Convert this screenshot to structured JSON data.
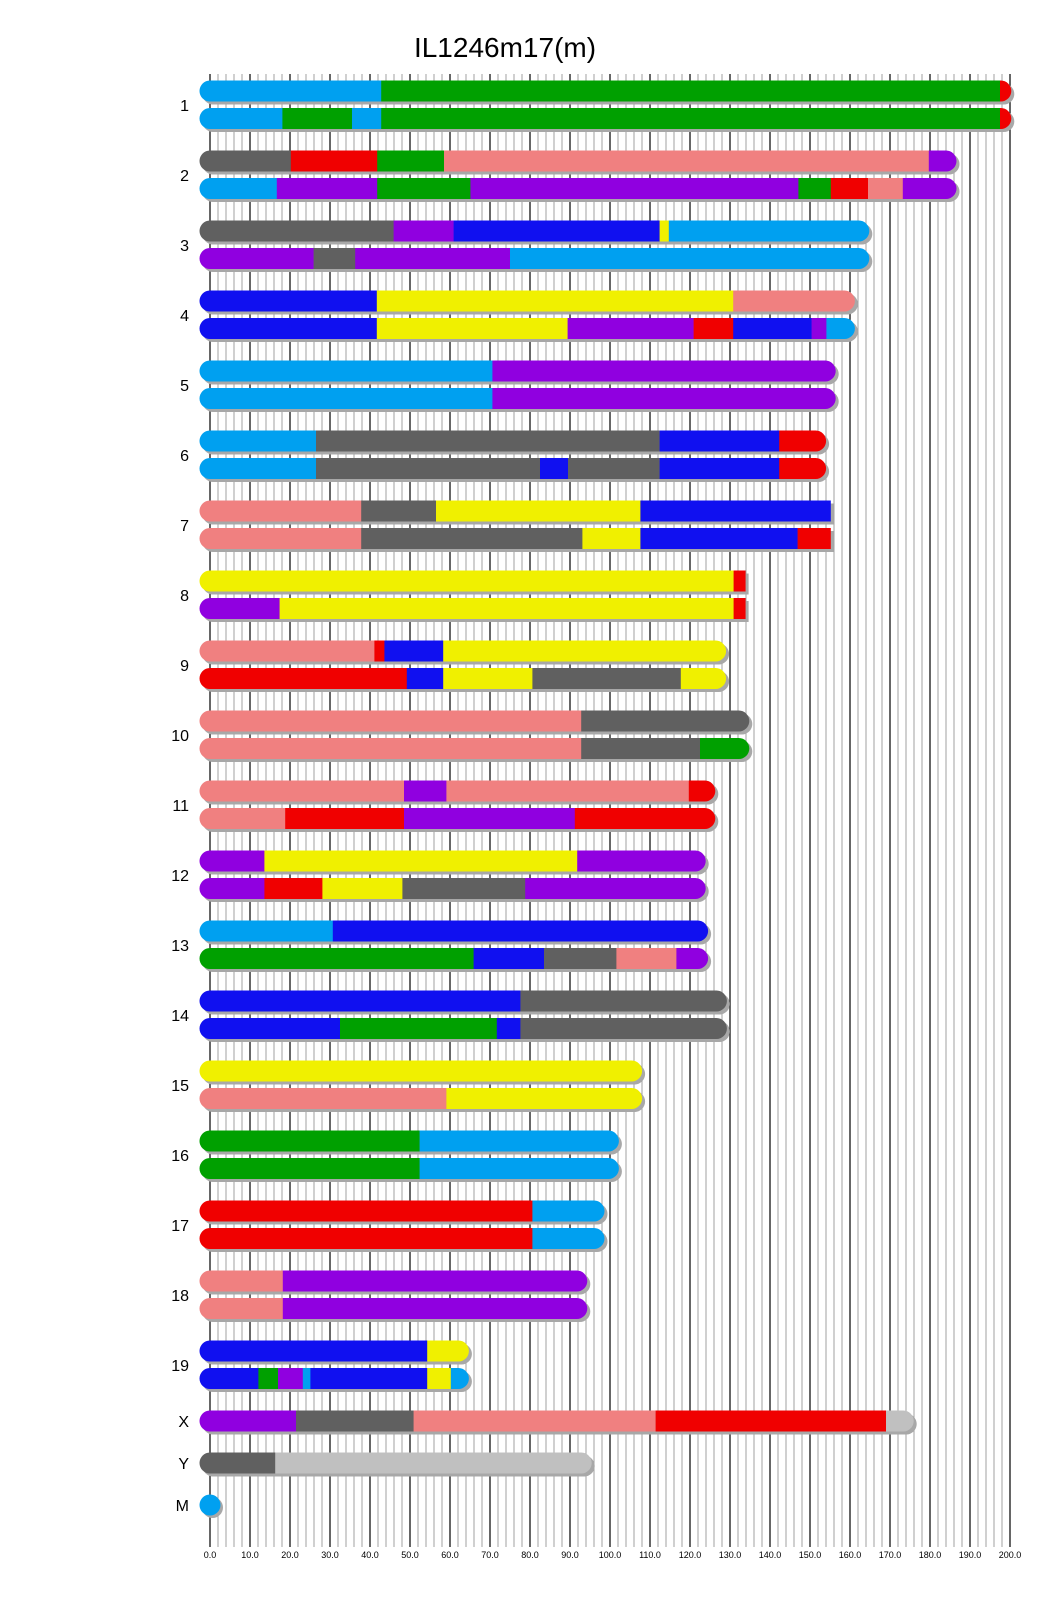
{
  "chart_data": {
    "type": "bar",
    "subtype": "chromosome-haplotype-painting",
    "title": "IL1246m17(m)",
    "xlabel": "",
    "ylabel": "",
    "xlim": [
      0,
      200
    ],
    "x_ticks": [
      "0.0",
      "10.0",
      "20.0",
      "30.0",
      "40.0",
      "50.0",
      "60.0",
      "70.0",
      "80.0",
      "90.0",
      "100.0",
      "110.0",
      "120.0",
      "130.0",
      "140.0",
      "150.0",
      "160.0",
      "170.0",
      "180.0",
      "190.0",
      "200.0"
    ],
    "grid": {
      "major_step": 10,
      "minor_step": 2
    },
    "colors": {
      "lightblue": "#00A0F0",
      "green": "#00A000",
      "red": "#F00000",
      "gray": "#606060",
      "salmon": "#F08080",
      "purple": "#9000E0",
      "blue": "#1010F0",
      "yellow": "#F0F000",
      "lightgray": "#C0C0C0",
      "shadow": "#A8A8A8",
      "grid_major": "#000000",
      "grid_minor": "#A0A0A0"
    },
    "chromosomes": [
      {
        "label": "1",
        "length": 197.7,
        "haplotypes": [
          [
            [
              42.8,
              "lightblue"
            ],
            [
              197.5,
              "green"
            ],
            [
              197.7,
              "red"
            ]
          ],
          [
            [
              18.1,
              "lightblue"
            ],
            [
              35.5,
              "green"
            ],
            [
              42.8,
              "lightblue"
            ],
            [
              197.5,
              "green"
            ],
            [
              197.7,
              "red"
            ]
          ]
        ]
      },
      {
        "label": "2",
        "length": 184.0,
        "haplotypes": [
          [
            [
              20.2,
              "gray"
            ],
            [
              41.8,
              "red"
            ],
            [
              58.5,
              "green"
            ],
            [
              179.7,
              "salmon"
            ],
            [
              184.0,
              "purple"
            ]
          ],
          [
            [
              16.7,
              "lightblue"
            ],
            [
              41.8,
              "purple"
            ],
            [
              65.1,
              "green"
            ],
            [
              147.1,
              "purple"
            ],
            [
              155.2,
              "green"
            ],
            [
              164.5,
              "red"
            ],
            [
              173.2,
              "salmon"
            ],
            [
              184.0,
              "purple"
            ]
          ]
        ]
      },
      {
        "label": "3",
        "length": 162.2,
        "haplotypes": [
          [
            [
              45.9,
              "gray"
            ],
            [
              60.9,
              "purple"
            ],
            [
              112.4,
              "blue"
            ],
            [
              114.7,
              "yellow"
            ],
            [
              162.2,
              "lightblue"
            ]
          ],
          [
            [
              25.9,
              "purple"
            ],
            [
              36.3,
              "gray"
            ],
            [
              75.0,
              "purple"
            ],
            [
              162.2,
              "lightblue"
            ]
          ]
        ]
      },
      {
        "label": "4",
        "length": 158.6,
        "haplotypes": [
          [
            [
              41.7,
              "blue"
            ],
            [
              130.8,
              "yellow"
            ],
            [
              158.6,
              "salmon"
            ]
          ],
          [
            [
              41.7,
              "blue"
            ],
            [
              89.4,
              "yellow"
            ],
            [
              120.9,
              "purple"
            ],
            [
              130.8,
              "red"
            ],
            [
              150.4,
              "blue"
            ],
            [
              154.1,
              "purple"
            ],
            [
              158.6,
              "lightblue"
            ]
          ]
        ]
      },
      {
        "label": "5",
        "length": 153.8,
        "haplotypes": [
          [
            [
              70.6,
              "lightblue"
            ],
            [
              153.8,
              "purple"
            ]
          ],
          [
            [
              70.6,
              "lightblue"
            ],
            [
              153.8,
              "purple"
            ]
          ]
        ]
      },
      {
        "label": "6",
        "length": 151.4,
        "haplotypes": [
          [
            [
              26.5,
              "lightblue"
            ],
            [
              112.4,
              "gray"
            ],
            [
              142.3,
              "blue"
            ],
            [
              151.4,
              "red"
            ]
          ],
          [
            [
              26.5,
              "lightblue"
            ],
            [
              82.5,
              "gray"
            ],
            [
              89.5,
              "blue"
            ],
            [
              112.4,
              "gray"
            ],
            [
              142.3,
              "blue"
            ],
            [
              151.4,
              "red"
            ]
          ]
        ]
      },
      {
        "label": "7",
        "length": 155.2,
        "square_end": true,
        "haplotypes": [
          [
            [
              37.8,
              "salmon"
            ],
            [
              56.5,
              "gray"
            ],
            [
              107.6,
              "yellow"
            ],
            [
              155.2,
              "blue"
            ]
          ],
          [
            [
              37.8,
              "salmon"
            ],
            [
              93.1,
              "gray"
            ],
            [
              107.6,
              "yellow"
            ],
            [
              146.9,
              "blue"
            ],
            [
              155.2,
              "red"
            ]
          ]
        ]
      },
      {
        "label": "8",
        "length": 133.9,
        "square_end": true,
        "haplotypes": [
          [
            [
              130.9,
              "yellow"
            ],
            [
              133.9,
              "red"
            ]
          ],
          [
            [
              17.4,
              "purple"
            ],
            [
              130.9,
              "yellow"
            ],
            [
              133.9,
              "red"
            ]
          ]
        ]
      },
      {
        "label": "9",
        "length": 126.4,
        "haplotypes": [
          [
            [
              41.1,
              "salmon"
            ],
            [
              43.6,
              "red"
            ],
            [
              58.3,
              "blue"
            ],
            [
              126.4,
              "yellow"
            ]
          ],
          [
            [
              49.2,
              "red"
            ],
            [
              58.3,
              "blue"
            ],
            [
              80.6,
              "yellow"
            ],
            [
              117.7,
              "gray"
            ],
            [
              126.4,
              "yellow"
            ]
          ]
        ]
      },
      {
        "label": "10",
        "length": 132.2,
        "haplotypes": [
          [
            [
              92.8,
              "salmon"
            ],
            [
              132.2,
              "gray"
            ]
          ],
          [
            [
              92.8,
              "salmon"
            ],
            [
              122.5,
              "gray"
            ],
            [
              132.2,
              "green"
            ]
          ]
        ]
      },
      {
        "label": "11",
        "length": 123.7,
        "haplotypes": [
          [
            [
              48.5,
              "salmon"
            ],
            [
              59.1,
              "purple"
            ],
            [
              119.7,
              "salmon"
            ],
            [
              123.7,
              "red"
            ]
          ],
          [
            [
              18.8,
              "salmon"
            ],
            [
              48.5,
              "red"
            ],
            [
              91.2,
              "purple"
            ],
            [
              123.7,
              "red"
            ]
          ]
        ]
      },
      {
        "label": "12",
        "length": 121.3,
        "haplotypes": [
          [
            [
              13.6,
              "purple"
            ],
            [
              91.8,
              "yellow"
            ],
            [
              121.3,
              "purple"
            ]
          ],
          [
            [
              13.6,
              "purple"
            ],
            [
              28.1,
              "red"
            ],
            [
              48.1,
              "yellow"
            ],
            [
              78.8,
              "gray"
            ],
            [
              121.3,
              "purple"
            ]
          ]
        ]
      },
      {
        "label": "13",
        "length": 121.9,
        "haplotypes": [
          [
            [
              30.7,
              "lightblue"
            ],
            [
              121.9,
              "blue"
            ]
          ],
          [
            [
              65.9,
              "green"
            ],
            [
              83.5,
              "blue"
            ],
            [
              101.6,
              "gray"
            ],
            [
              116.6,
              "salmon"
            ],
            [
              121.9,
              "purple"
            ]
          ]
        ]
      },
      {
        "label": "14",
        "length": 126.6,
        "haplotypes": [
          [
            [
              77.6,
              "blue"
            ],
            [
              126.6,
              "gray"
            ]
          ],
          [
            [
              32.5,
              "blue"
            ],
            [
              71.7,
              "green"
            ],
            [
              77.6,
              "blue"
            ],
            [
              126.6,
              "gray"
            ]
          ]
        ]
      },
      {
        "label": "15",
        "length": 105.4,
        "haplotypes": [
          [
            [
              105.4,
              "yellow"
            ]
          ],
          [
            [
              59.1,
              "salmon"
            ],
            [
              105.4,
              "yellow"
            ]
          ]
        ]
      },
      {
        "label": "16",
        "length": 99.6,
        "haplotypes": [
          [
            [
              52.4,
              "green"
            ],
            [
              99.6,
              "lightblue"
            ]
          ],
          [
            [
              52.4,
              "green"
            ],
            [
              99.6,
              "lightblue"
            ]
          ]
        ]
      },
      {
        "label": "17",
        "length": 96.0,
        "haplotypes": [
          [
            [
              80.6,
              "red"
            ],
            [
              96.0,
              "lightblue"
            ]
          ],
          [
            [
              80.6,
              "red"
            ],
            [
              96.0,
              "lightblue"
            ]
          ]
        ]
      },
      {
        "label": "18",
        "length": 91.7,
        "haplotypes": [
          [
            [
              18.2,
              "salmon"
            ],
            [
              91.7,
              "purple"
            ]
          ],
          [
            [
              18.2,
              "salmon"
            ],
            [
              91.7,
              "purple"
            ]
          ]
        ]
      },
      {
        "label": "19",
        "length": 62.1,
        "haplotypes": [
          [
            [
              54.3,
              "blue"
            ],
            [
              62.1,
              "yellow"
            ]
          ],
          [
            [
              12.1,
              "blue"
            ],
            [
              17.0,
              "green"
            ],
            [
              23.2,
              "purple"
            ],
            [
              25.1,
              "lightblue"
            ],
            [
              54.3,
              "blue"
            ],
            [
              60.2,
              "yellow"
            ],
            [
              62.1,
              "lightblue"
            ]
          ]
        ]
      },
      {
        "label": "X",
        "length": 173.3,
        "haplotypes": [
          [
            [
              21.5,
              "purple"
            ],
            [
              50.9,
              "gray"
            ],
            [
              111.4,
              "salmon"
            ],
            [
              169.0,
              "red"
            ],
            [
              173.3,
              "lightgray"
            ]
          ]
        ]
      },
      {
        "label": "Y",
        "length": 92.8,
        "haplotypes": [
          [
            [
              16.3,
              "gray"
            ],
            [
              92.8,
              "lightgray"
            ]
          ]
        ]
      },
      {
        "label": "M",
        "length": 0,
        "haplotypes": [
          [
            [
              0,
              "lightblue"
            ]
          ]
        ]
      }
    ]
  }
}
